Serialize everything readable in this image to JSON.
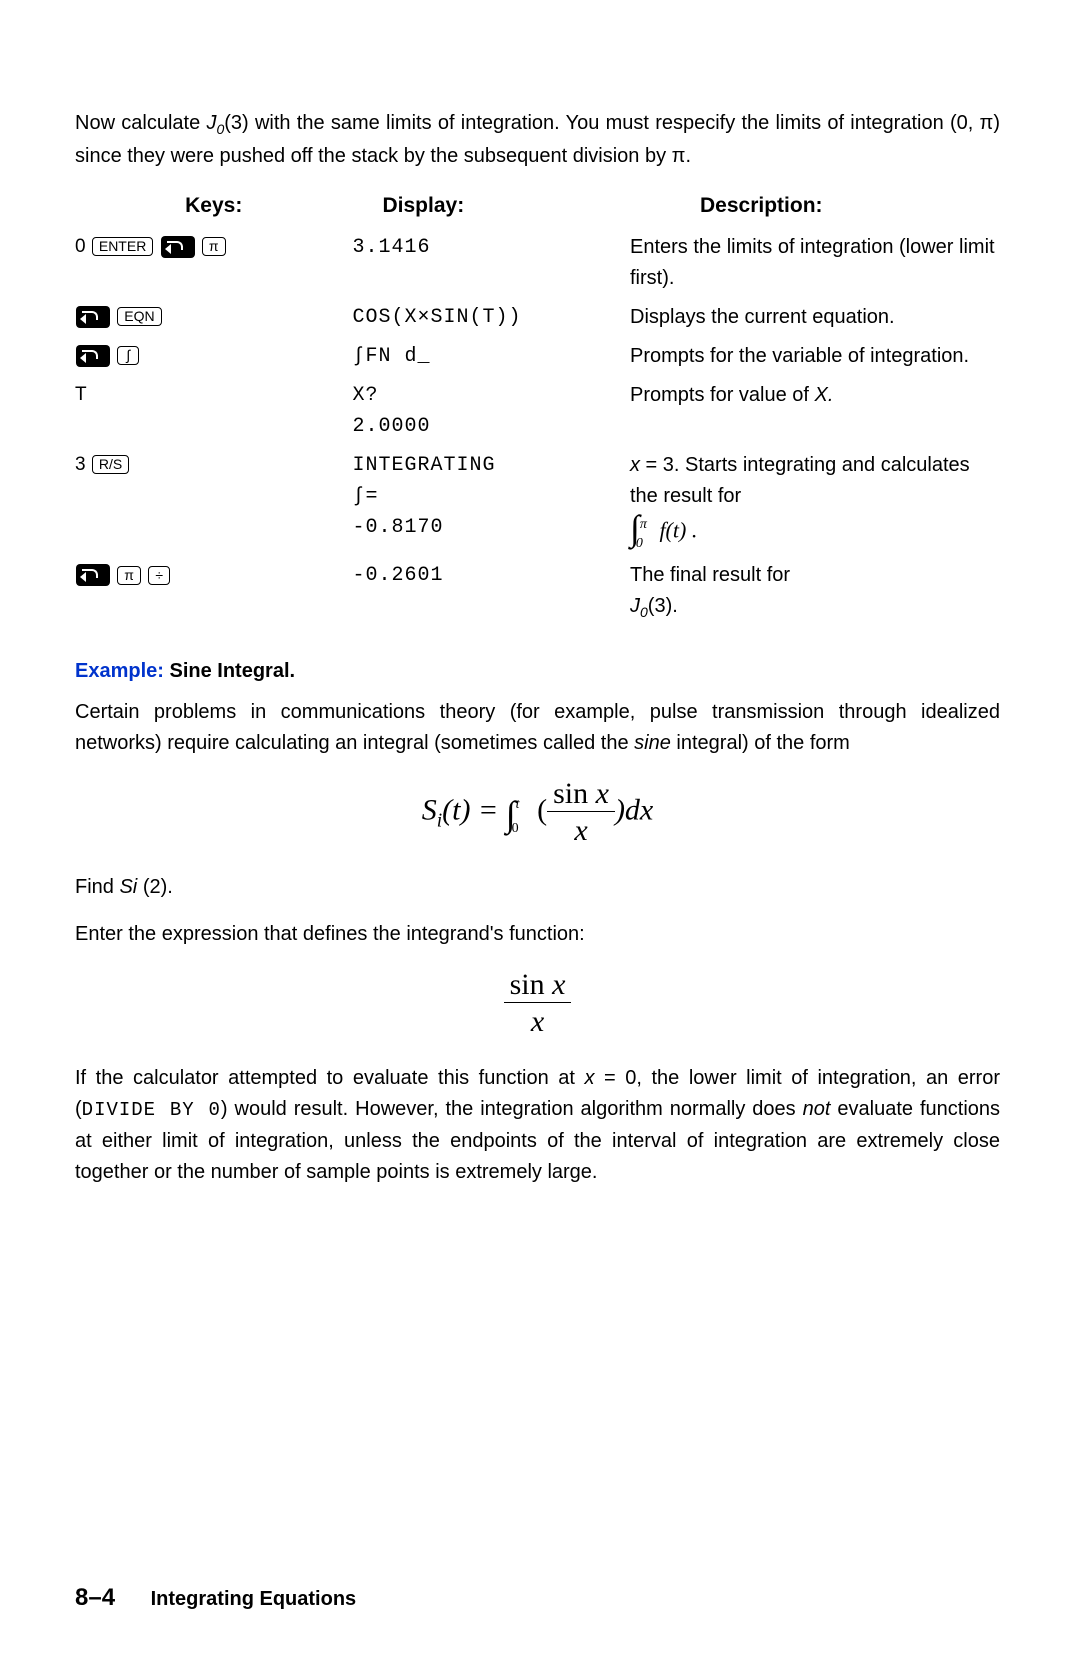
{
  "intro": "Now calculate ",
  "intro_j": "J",
  "intro_j_sub": "0",
  "intro_j_arg": "(3)",
  "intro_rest": " with the same limits of integration. You must respecify the limits of integration (0, π) since they were pushed off the stack by the subsequent division by π.",
  "headers": {
    "keys": "Keys:",
    "display": "Display:",
    "desc": "Description:"
  },
  "rows": [
    {
      "keys": [
        {
          "t": "text",
          "v": "0 "
        },
        {
          "t": "box",
          "v": "ENTER"
        },
        {
          "t": "shift"
        },
        {
          "t": "box",
          "v": "π"
        }
      ],
      "display": "3.1416",
      "desc": "Enters the limits of integration (lower limit first)."
    },
    {
      "keys": [
        {
          "t": "shift"
        },
        {
          "t": "box",
          "v": "EQN"
        }
      ],
      "display": "COS(X×SIN(T))",
      "desc": "Displays the current equation."
    },
    {
      "keys": [
        {
          "t": "shift"
        },
        {
          "t": "box",
          "v": "∫"
        }
      ],
      "display": "∫FN d_",
      "desc": "Prompts for the variable of integration."
    },
    {
      "keys": [
        {
          "t": "text",
          "v": "T"
        }
      ],
      "display": "X?\n2.0000",
      "desc_html": "prompts_x"
    },
    {
      "keys": [
        {
          "t": "text",
          "v": "3 "
        },
        {
          "t": "box",
          "v": "R/S"
        }
      ],
      "display": "INTEGRATING\n∫=\n-0.8170",
      "desc_html": "integ"
    },
    {
      "keys": [
        {
          "t": "shift"
        },
        {
          "t": "box",
          "v": "π"
        },
        {
          "t": "box",
          "v": "÷"
        }
      ],
      "display": "-0.2601",
      "desc_html": "final"
    }
  ],
  "desc_prompts_x": "Prompts for value of ",
  "desc_prompts_x_i": "X.",
  "desc_integ_pre": "x",
  "desc_integ_eq": " = 3. Starts integrating and calculates the result for",
  "desc_integ_int_up": "π",
  "desc_integ_int_lo": "0",
  "desc_integ_fn": "f(t) .",
  "desc_final_pre": "The final result for",
  "desc_final_j": "J",
  "desc_final_sub": "0",
  "desc_final_arg": "(3).",
  "example_label": "Example:",
  "example_title": " Sine Integral.",
  "para1_a": "Certain problems in communications theory (for example, pulse transmission through idealized networks) require calculating an integral (sometimes called the ",
  "para1_i": "sine",
  "para1_b": " integral) of the form",
  "eq_si": "S",
  "eq_si_sub": "i",
  "eq_si_arg": "(t) = ",
  "eq_int_up": "t",
  "eq_int_lo": "0",
  "eq_open": " (",
  "eq_num": "sin x",
  "eq_den": "x",
  "eq_close": ")dx",
  "find": "Find ",
  "find_i": "Si ",
  "find_arg": "(2).",
  "enter_expr": "Enter the expression that defines the integrand's function:",
  "frac2_num": "sin x",
  "frac2_den": "x",
  "para2_a": "If the calculator attempted to evaluate this function at ",
  "para2_eq": "x = 0",
  "para2_b": ", the lower limit of integration, an error (",
  "para2_mono": "DIVIDE BY 0",
  "para2_c": ") would result. However, the integration algorithm normally does ",
  "para2_not": "not",
  "para2_d": " evaluate functions at either limit of integration, unless the endpoints of the interval of integration are extremely close together or the number of sample points is extremely large.",
  "footer_page": "8–4",
  "footer_chapter": "Integrating Equations"
}
